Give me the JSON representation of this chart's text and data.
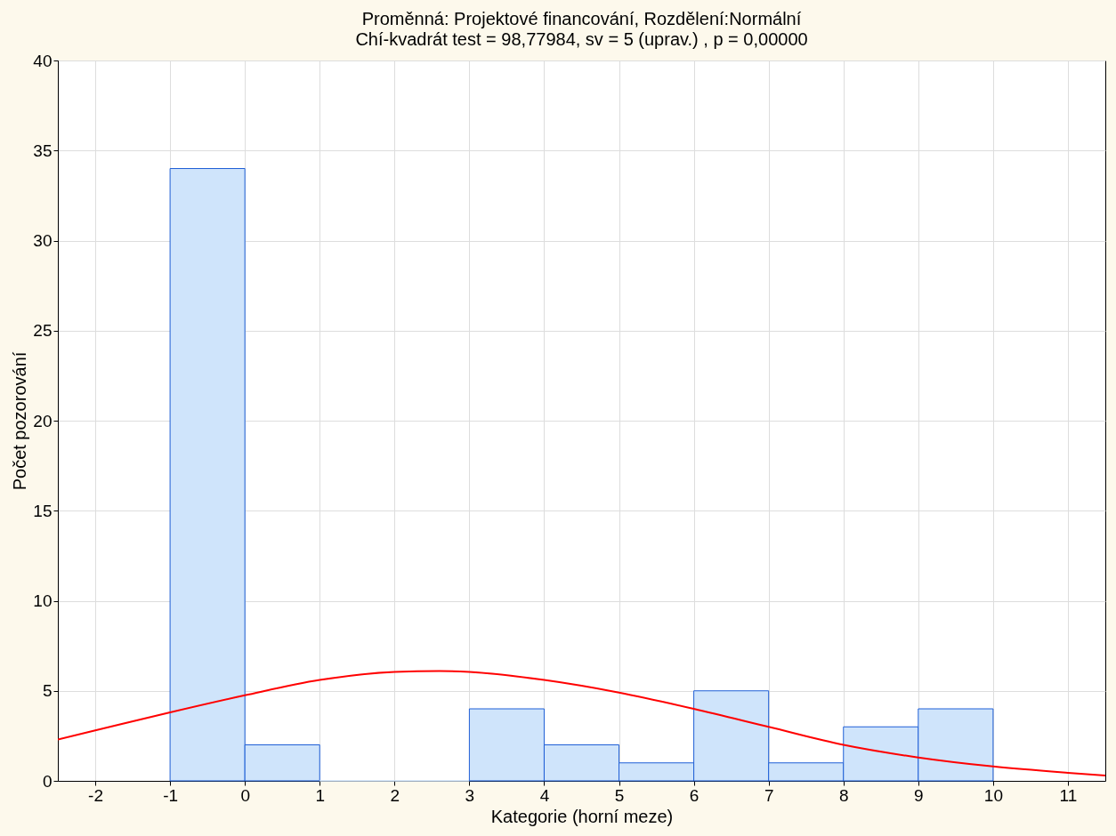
{
  "chart_data": {
    "type": "histogram",
    "title": "Proměnná: Projektové financování, Rozdělení:Normální",
    "subtitle": "Chí-kvadrát test = 98,77984, sv = 5 (uprav.) , p = 0,00000",
    "xlabel": "Kategorie (horní meze)",
    "ylabel": "Počet pozorování",
    "bins": [
      -1,
      0,
      1,
      2,
      3,
      4,
      5,
      6,
      7,
      8,
      9,
      10
    ],
    "values": [
      34,
      2,
      0,
      0,
      4,
      2,
      1,
      5,
      1,
      3,
      4
    ],
    "color": "#cfe4fb",
    "series": [
      {
        "type": "line",
        "color": "#ff0000",
        "x": [
          -2.5,
          -2,
          -1,
          0,
          1,
          2,
          2.6,
          3,
          4,
          5,
          6,
          7,
          8,
          9,
          10,
          11,
          11.5
        ],
        "values": [
          2.3,
          2.8,
          3.8,
          4.75,
          5.6,
          6.05,
          6.1,
          6.05,
          5.6,
          4.9,
          4.0,
          3.0,
          2.0,
          1.3,
          0.8,
          0.45,
          0.3
        ]
      }
    ],
    "xlim": [
      -2.5,
      11.5
    ],
    "xticks": [
      -2,
      -1,
      0,
      1,
      2,
      3,
      4,
      5,
      6,
      7,
      8,
      9,
      10,
      11
    ],
    "ylim": [
      0,
      40
    ],
    "yticks": [
      0,
      5,
      10,
      15,
      20,
      25,
      30,
      35,
      40
    ],
    "grid": true
  }
}
